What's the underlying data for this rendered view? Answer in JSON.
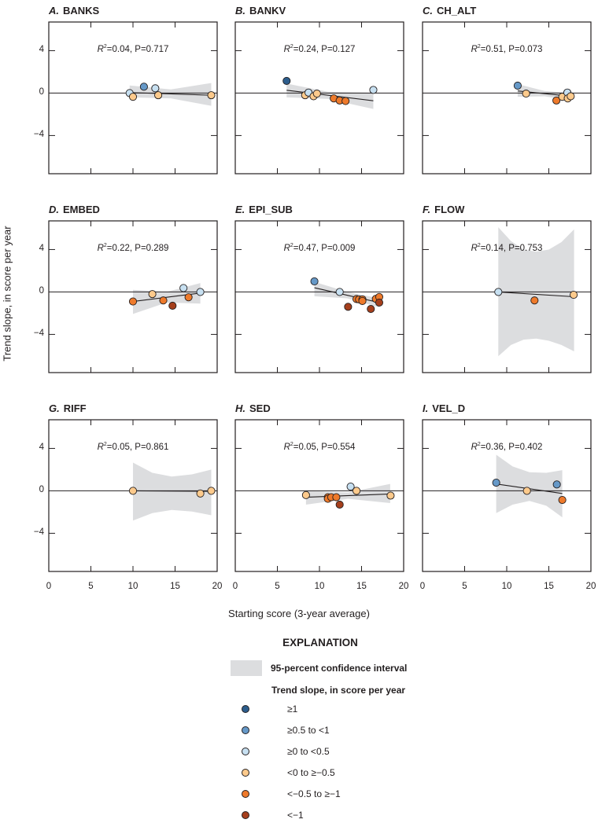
{
  "figure": {
    "xlabel": "Starting score (3-year average)",
    "ylabel": "Trend slope, in score per year",
    "xlim": [
      0,
      20
    ],
    "ylim": [
      -7.6,
      6.7
    ],
    "xticks": [
      0,
      5,
      10,
      15,
      20
    ],
    "xtick_labels": [
      "0",
      "5",
      "10",
      "15",
      "20"
    ],
    "yticks": [
      4,
      0,
      -4
    ],
    "ytick_labels": [
      "4",
      "0",
      "−4"
    ],
    "stat_symbol": "R",
    "stat_exponent": "2",
    "ci_color": "#dcdddf"
  },
  "legend": {
    "title": "EXPLANATION",
    "ci_label": "95-percent confidence interval",
    "slope_title": "Trend slope, in score per year",
    "categories": [
      {
        "label": "≥1",
        "color": "#2c5d8c"
      },
      {
        "label": "≥0.5 to <1",
        "color": "#6699c8"
      },
      {
        "label": "≥0 to <0.5",
        "color": "#c7e0f1"
      },
      {
        "label": "<0 to ≥−0.5",
        "color": "#fdca8c"
      },
      {
        "label": "<−0.5 to ≥−1",
        "color": "#ee7a2b"
      },
      {
        "label": "<−1",
        "color": "#a53f1c"
      }
    ]
  },
  "chart_data": [
    {
      "type": "scatter",
      "letter": "A.",
      "title": "BANKS",
      "stat": "=0.04, P=0.717",
      "points": [
        [
          9.6,
          0,
          2
        ],
        [
          10.0,
          -0.35,
          3
        ],
        [
          11.3,
          0.6,
          1
        ],
        [
          12.65,
          0.45,
          2
        ],
        [
          13.0,
          -0.2,
          3
        ],
        [
          19.3,
          -0.2,
          3
        ]
      ],
      "fit": [
        [
          9.6,
          0.05
        ],
        [
          19.3,
          -0.2
        ]
      ],
      "ci": {
        "x": [
          9.6,
          14.5,
          19.3
        ],
        "upper": [
          0.72,
          0.35,
          0.95
        ],
        "lower": [
          -0.4,
          -0.5,
          -1.2
        ]
      }
    },
    {
      "type": "scatter",
      "letter": "B.",
      "title": "BANKV",
      "stat": "=0.24, P=0.127",
      "points": [
        [
          6.1,
          1.15,
          0
        ],
        [
          8.3,
          -0.2,
          3
        ],
        [
          8.7,
          0.05,
          2
        ],
        [
          9.3,
          -0.3,
          3
        ],
        [
          9.7,
          -0.05,
          3
        ],
        [
          11.7,
          -0.5,
          4
        ],
        [
          12.4,
          -0.7,
          4
        ],
        [
          13.1,
          -0.75,
          4
        ],
        [
          16.4,
          0.3,
          2
        ]
      ],
      "fit": [
        [
          6.1,
          0.27
        ],
        [
          16.4,
          -0.72
        ]
      ],
      "ci": {
        "x": [
          6.1,
          11,
          16.4
        ],
        "upper": [
          0.9,
          0.12,
          0.03
        ],
        "lower": [
          -0.4,
          -0.55,
          -1.5
        ]
      }
    },
    {
      "type": "scatter",
      "letter": "C.",
      "title": "CH_ALT",
      "stat": "=0.51, P=0.073",
      "points": [
        [
          11.3,
          0.7,
          1
        ],
        [
          12.3,
          -0.05,
          3
        ],
        [
          15.9,
          -0.7,
          4
        ],
        [
          16.6,
          -0.35,
          3
        ],
        [
          17.2,
          0.05,
          2
        ],
        [
          17.25,
          -0.5,
          3
        ],
        [
          17.6,
          -0.3,
          3
        ]
      ],
      "fit": [
        [
          11.3,
          0.2
        ],
        [
          17.6,
          -0.3
        ]
      ],
      "ci": {
        "x": [
          11.3,
          14.5,
          17.6
        ],
        "upper": [
          0.85,
          0.2,
          0
        ],
        "lower": [
          -0.35,
          -0.3,
          -0.7
        ]
      }
    },
    {
      "type": "scatter",
      "letter": "D.",
      "title": "EMBED",
      "stat": "=0.22, P=0.289",
      "points": [
        [
          10.0,
          -0.9,
          4
        ],
        [
          12.3,
          -0.2,
          3
        ],
        [
          13.6,
          -0.8,
          4
        ],
        [
          14.7,
          -1.3,
          5
        ],
        [
          16.0,
          0.37,
          2
        ],
        [
          16.6,
          -0.5,
          4
        ],
        [
          18.0,
          0,
          2
        ]
      ],
      "fit": [
        [
          10,
          -0.9
        ],
        [
          18,
          -0.1
        ]
      ],
      "ci": {
        "x": [
          10,
          14,
          18
        ],
        "upper": [
          0.2,
          0,
          0.84
        ],
        "lower": [
          -2.07,
          -1.0,
          -1.1
        ]
      }
    },
    {
      "type": "scatter",
      "letter": "E.",
      "title": "EPI_SUB",
      "stat": "=0.47, P=0.009",
      "points": [
        [
          9.4,
          1.0,
          1
        ],
        [
          12.4,
          0,
          2
        ],
        [
          13.4,
          -1.4,
          5
        ],
        [
          14.4,
          -0.67,
          4
        ],
        [
          14.7,
          -0.7,
          4
        ],
        [
          15.1,
          -0.7,
          4
        ],
        [
          15.1,
          -0.85,
          4
        ],
        [
          16.1,
          -1.6,
          5
        ],
        [
          16.7,
          -0.65,
          4
        ],
        [
          17.1,
          -0.47,
          4
        ],
        [
          17.1,
          -1.0,
          5
        ]
      ],
      "fit": [
        [
          9.4,
          0.4
        ],
        [
          17.1,
          -1.0
        ]
      ],
      "ci": {
        "x": [
          9.4,
          13.3,
          17.1
        ],
        "upper": [
          0.95,
          0,
          -0.6
        ],
        "lower": [
          -0.4,
          -0.6,
          -1.45
        ]
      }
    },
    {
      "type": "scatter",
      "letter": "F.",
      "title": "FLOW",
      "stat": "=0.14, P=0.753",
      "points": [
        [
          9.0,
          0,
          2
        ],
        [
          13.3,
          -0.8,
          4
        ],
        [
          17.95,
          -0.27,
          3
        ]
      ],
      "fit": [
        [
          9,
          0
        ],
        [
          18,
          -0.45
        ]
      ],
      "ci": {
        "x": [
          9,
          10.5,
          12,
          13.5,
          15,
          16.5,
          18
        ],
        "upper": [
          6.1,
          4.8,
          4.0,
          3.8,
          4.0,
          4.7,
          5.9
        ],
        "lower": [
          -6.05,
          -5.0,
          -4.5,
          -4.4,
          -4.6,
          -5.0,
          -5.6
        ]
      }
    },
    {
      "type": "scatter",
      "letter": "G.",
      "title": "RIFF",
      "stat": "=0.05, P=0.861",
      "points": [
        [
          10.0,
          0,
          3
        ],
        [
          18.0,
          -0.25,
          3
        ],
        [
          19.3,
          0,
          3
        ]
      ],
      "fit": [
        [
          10,
          0
        ],
        [
          19.3,
          -0.05
        ]
      ],
      "ci": {
        "x": [
          10,
          12.3,
          14.6,
          17,
          19.3
        ],
        "upper": [
          2.66,
          1.7,
          1.35,
          1.55,
          2.0
        ],
        "lower": [
          -2.8,
          -2.1,
          -1.8,
          -1.95,
          -2.3
        ]
      }
    },
    {
      "type": "scatter",
      "letter": "H.",
      "title": "SED",
      "stat": "=0.05, P=0.554",
      "points": [
        [
          8.4,
          -0.4,
          3
        ],
        [
          11.0,
          -0.6,
          4
        ],
        [
          11.0,
          -0.75,
          4
        ],
        [
          11.4,
          -0.6,
          4
        ],
        [
          12.0,
          -0.6,
          4
        ],
        [
          12.4,
          -1.3,
          5
        ],
        [
          13.7,
          0.4,
          2
        ],
        [
          14.4,
          0,
          3
        ],
        [
          18.45,
          -0.45,
          3
        ]
      ],
      "fit": [
        [
          8.4,
          -0.6
        ],
        [
          18.4,
          -0.3
        ]
      ],
      "ci": {
        "x": [
          8.4,
          13.4,
          18.4
        ],
        "upper": [
          0,
          -0.15,
          0.65
        ],
        "lower": [
          -1.3,
          -0.75,
          -1.15
        ]
      }
    },
    {
      "type": "scatter",
      "letter": "I.",
      "title": "VEL_D",
      "stat": "=0.36, P=0.402",
      "points": [
        [
          8.75,
          0.77,
          1
        ],
        [
          12.4,
          0,
          3
        ],
        [
          15.95,
          0.6,
          1
        ],
        [
          16.6,
          -0.86,
          4
        ]
      ],
      "fit": [
        [
          8.75,
          0.65
        ],
        [
          16.6,
          -0.25
        ]
      ],
      "ci": {
        "x": [
          8.75,
          10.7,
          12.7,
          14.7,
          16.6
        ],
        "upper": [
          3.4,
          2.3,
          1.75,
          1.7,
          1.95
        ],
        "lower": [
          -2.1,
          -1.3,
          -0.95,
          -1.4,
          -2.5
        ]
      }
    }
  ]
}
